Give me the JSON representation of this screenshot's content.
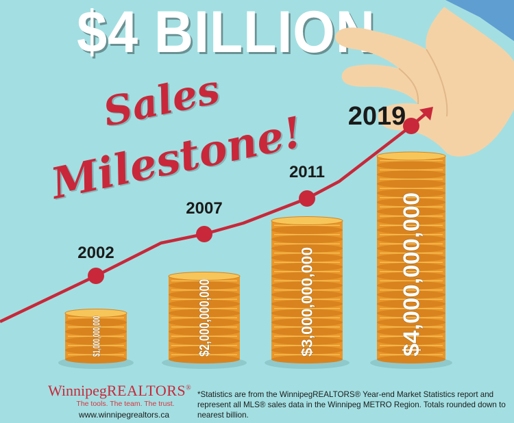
{
  "headline": "$4 BILLION",
  "script_line1": "Sales",
  "script_line2": "Milestone!",
  "colors": {
    "background": "#a3dfe2",
    "accent_red": "#c8283a",
    "coin_gold": "#f2a83a",
    "coin_shadow": "#8fc9cc",
    "hand_skin": "#f4d2a6",
    "sleeve": "#5f9ed1"
  },
  "chart_data": {
    "type": "bar",
    "categories": [
      "2002",
      "2007",
      "2011",
      "2019"
    ],
    "values": [
      1000000000,
      2000000000,
      3000000000,
      4000000000
    ],
    "value_labels": [
      "$1,000,000,000",
      "$2,000,000,000",
      "$3,000,000,000",
      "$4,000,000,000"
    ],
    "coin_counts": [
      5,
      9,
      15,
      22
    ],
    "trend_line": true,
    "title": "$4 BILLION Sales Milestone!"
  },
  "footer": {
    "logo_word1": "Winnipeg",
    "logo_word2": "REALTORS",
    "logo_reg": "®",
    "tagline": "The tools. The team. The trust.",
    "url": "www.winnipegrealtors.ca",
    "footnote": "*Statistics are from the WinnipegREALTORS® Year-end Market Statistics report and represent all MLS® sales data in the Winnipeg METRO Region. Totals rounded down to nearest billion."
  }
}
